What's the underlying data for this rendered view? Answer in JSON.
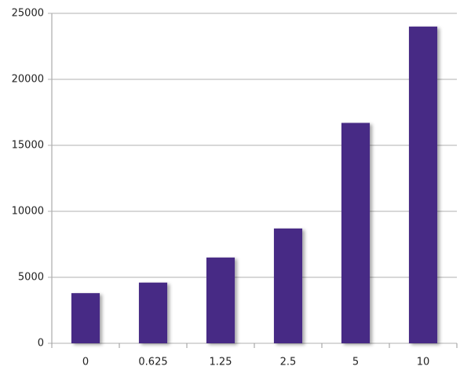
{
  "chart_data": {
    "type": "bar",
    "categories": [
      "0",
      "0.625",
      "1.25",
      "2.5",
      "5",
      "10"
    ],
    "values": [
      3800,
      4600,
      6500,
      8700,
      16700,
      24000
    ],
    "color": "#472c85",
    "ylim": [
      0,
      25000
    ],
    "yticks": [
      0,
      5000,
      10000,
      15000,
      20000,
      25000
    ],
    "grid": true
  }
}
